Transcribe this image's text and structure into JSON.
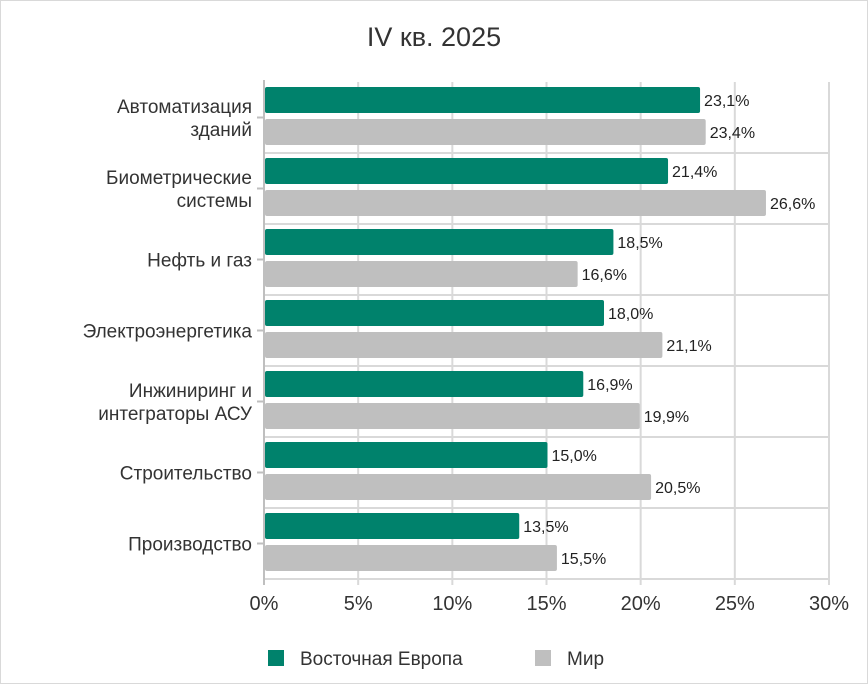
{
  "chart_data": {
    "type": "bar",
    "orientation": "horizontal",
    "title": "IV кв. 2025",
    "categories": [
      [
        "Автоматизация",
        "зданий"
      ],
      [
        "Биометрические",
        "системы"
      ],
      [
        "Нефть и газ"
      ],
      [
        "Электроэнергетика"
      ],
      [
        "Инжиниринг и",
        "интеграторы АСУ"
      ],
      [
        "Строительство"
      ],
      [
        "Производство"
      ]
    ],
    "series": [
      {
        "name": "Восточная Европа",
        "color": "#00826c",
        "values": [
          23.1,
          21.4,
          18.5,
          18.0,
          16.9,
          15.0,
          13.5
        ],
        "labels": [
          "23,1%",
          "21,4%",
          "18,5%",
          "18,0%",
          "16,9%",
          "15,0%",
          "13,5%"
        ]
      },
      {
        "name": "Мир",
        "color": "#bfbfbf",
        "values": [
          23.4,
          26.6,
          16.6,
          21.1,
          19.9,
          20.5,
          15.5
        ],
        "labels": [
          "23,4%",
          "26,6%",
          "16,6%",
          "21,1%",
          "19,9%",
          "20,5%",
          "15,5%"
        ]
      }
    ],
    "xlim": [
      0,
      30
    ],
    "xticks": [
      "0%",
      "5%",
      "10%",
      "15%",
      "20%",
      "25%",
      "30%"
    ],
    "grid": true,
    "legend": "bottom"
  }
}
